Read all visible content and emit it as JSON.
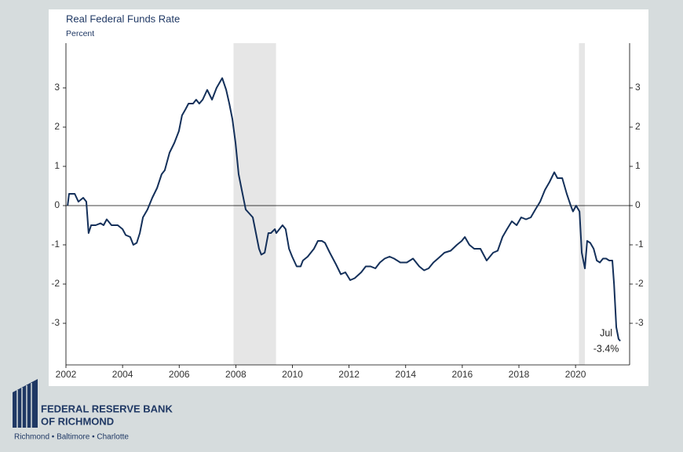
{
  "chart_data": {
    "type": "line",
    "title": "Real Federal Funds Rate",
    "subtitle": "Percent",
    "x": [
      2002.06,
      2002.11,
      2002.31,
      2002.44,
      2002.61,
      2002.72,
      2002.8,
      2002.89,
      2003.05,
      2003.22,
      2003.33,
      2003.44,
      2003.61,
      2003.83,
      2004.0,
      2004.11,
      2004.27,
      2004.38,
      2004.5,
      2004.61,
      2004.72,
      2004.88,
      2005.05,
      2005.22,
      2005.38,
      2005.49,
      2005.66,
      2005.83,
      2005.99,
      2006.1,
      2006.22,
      2006.33,
      2006.49,
      2006.6,
      2006.71,
      2006.83,
      2006.99,
      2007.16,
      2007.32,
      2007.52,
      2007.66,
      2007.77,
      2007.88,
      2007.99,
      2008.1,
      2008.21,
      2008.35,
      2008.6,
      2008.82,
      2008.9,
      2009.02,
      2009.15,
      2009.24,
      2009.38,
      2009.43,
      2009.54,
      2009.65,
      2009.76,
      2009.88,
      2009.99,
      2010.15,
      2010.29,
      2010.37,
      2010.54,
      2010.76,
      2010.9,
      2011.04,
      2011.15,
      2011.32,
      2011.54,
      2011.71,
      2011.87,
      2012.04,
      2012.2,
      2012.43,
      2012.59,
      2012.76,
      2012.93,
      2013.09,
      2013.26,
      2013.43,
      2013.59,
      2013.81,
      2014.04,
      2014.26,
      2014.48,
      2014.65,
      2014.81,
      2014.98,
      2015.14,
      2015.37,
      2015.59,
      2015.81,
      2015.98,
      2016.09,
      2016.25,
      2016.42,
      2016.64,
      2016.86,
      2017.09,
      2017.25,
      2017.42,
      2017.58,
      2017.75,
      2017.92,
      2018.08,
      2018.25,
      2018.42,
      2018.58,
      2018.75,
      2018.92,
      2019.08,
      2019.25,
      2019.36,
      2019.53,
      2019.69,
      2019.83,
      2019.91,
      2020.02,
      2020.14,
      2020.22,
      2020.33,
      2020.41,
      2020.52,
      2020.64,
      2020.75,
      2020.86,
      2020.97,
      2021.08,
      2021.19,
      2021.3,
      2021.36,
      2021.44,
      2021.52,
      2021.58
    ],
    "series": [
      {
        "name": "Real Federal Funds Rate",
        "color": "#14305a",
        "values": [
          0.0,
          0.3,
          0.3,
          0.1,
          0.2,
          0.1,
          -0.7,
          -0.5,
          -0.5,
          -0.45,
          -0.5,
          -0.35,
          -0.5,
          -0.5,
          -0.6,
          -0.75,
          -0.8,
          -1.0,
          -0.95,
          -0.7,
          -0.3,
          -0.1,
          0.2,
          0.45,
          0.8,
          0.9,
          1.35,
          1.6,
          1.9,
          2.3,
          2.45,
          2.6,
          2.6,
          2.7,
          2.6,
          2.7,
          2.95,
          2.7,
          3.0,
          3.25,
          2.95,
          2.6,
          2.2,
          1.6,
          0.8,
          0.4,
          -0.1,
          -0.3,
          -1.1,
          -1.25,
          -1.2,
          -0.7,
          -0.7,
          -0.6,
          -0.7,
          -0.6,
          -0.5,
          -0.6,
          -1.1,
          -1.3,
          -1.55,
          -1.55,
          -1.4,
          -1.3,
          -1.1,
          -0.9,
          -0.9,
          -0.95,
          -1.2,
          -1.5,
          -1.75,
          -1.7,
          -1.9,
          -1.85,
          -1.7,
          -1.55,
          -1.55,
          -1.6,
          -1.45,
          -1.35,
          -1.3,
          -1.35,
          -1.45,
          -1.45,
          -1.35,
          -1.55,
          -1.65,
          -1.6,
          -1.45,
          -1.35,
          -1.2,
          -1.15,
          -1.0,
          -0.9,
          -0.8,
          -1.0,
          -1.1,
          -1.1,
          -1.4,
          -1.2,
          -1.15,
          -0.8,
          -0.6,
          -0.4,
          -0.5,
          -0.3,
          -0.35,
          -0.3,
          -0.1,
          0.1,
          0.4,
          0.6,
          0.85,
          0.7,
          0.7,
          0.3,
          0.0,
          -0.15,
          0.0,
          -0.15,
          -1.2,
          -1.6,
          -0.9,
          -0.95,
          -1.1,
          -1.4,
          -1.45,
          -1.35,
          -1.35,
          -1.4,
          -1.4,
          -2.0,
          -3.1,
          -3.4,
          -3.45
        ]
      }
    ],
    "recessions": [
      [
        2007.92,
        2009.42
      ],
      [
        2020.12,
        2020.33
      ]
    ],
    "annotations": [
      "Jul",
      "-3.4%"
    ],
    "xlim": [
      2002,
      2021.91
    ],
    "xticks": [
      2002,
      2004,
      2006,
      2008,
      2010,
      2012,
      2014,
      2016,
      2018,
      2020
    ],
    "ylim": [
      -4.06,
      4.14
    ],
    "yticks": [
      -3,
      -2,
      -1,
      0,
      1,
      2,
      3
    ]
  },
  "logo": {
    "line1": "FEDERAL RESERVE BANK",
    "line2": "OF RICHMOND",
    "cities": "Richmond • Baltimore • Charlotte"
  }
}
